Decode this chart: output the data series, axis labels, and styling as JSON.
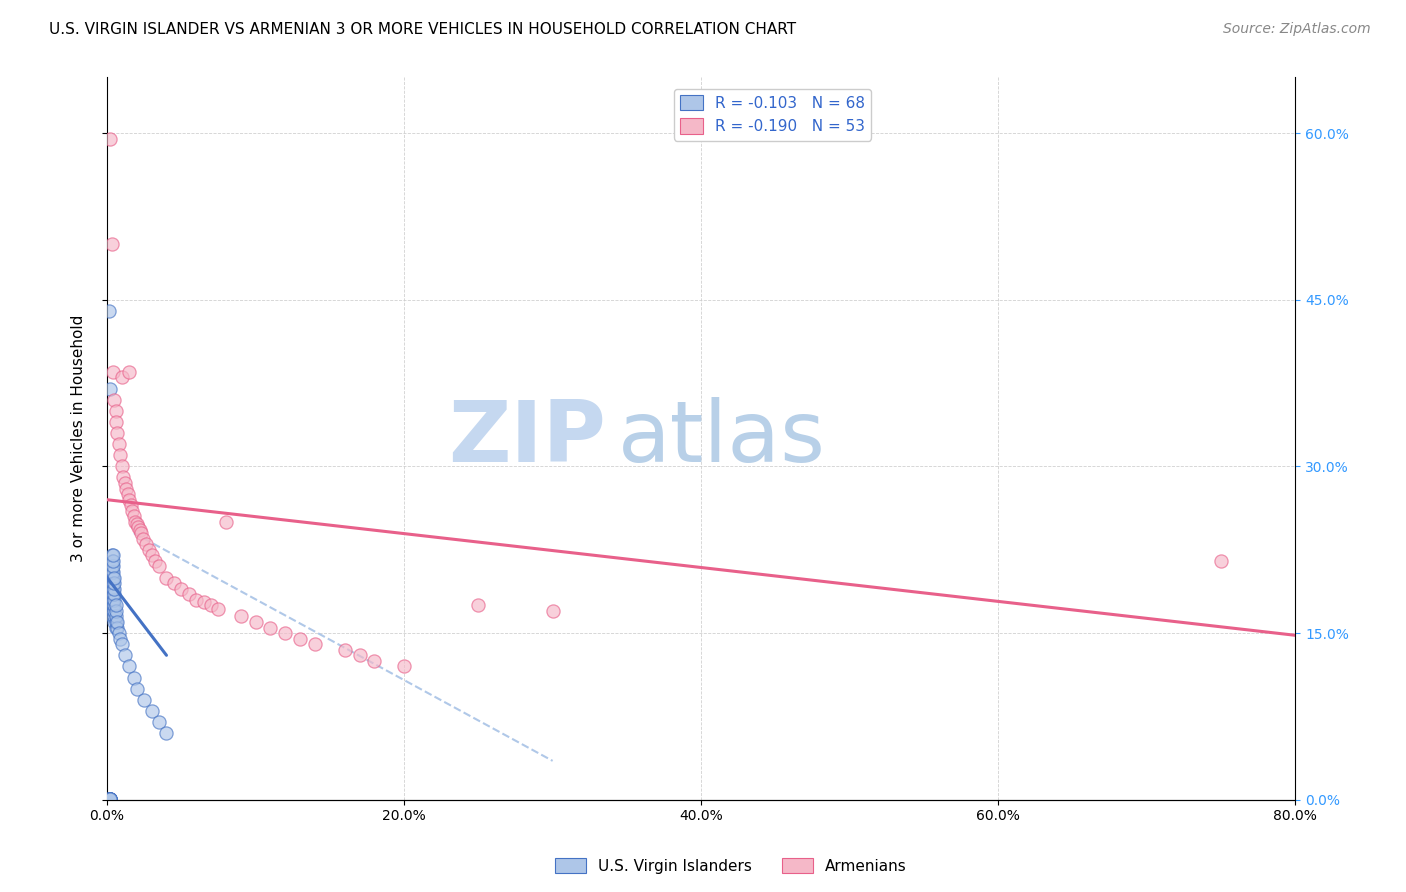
{
  "title": "U.S. VIRGIN ISLANDER VS ARMENIAN 3 OR MORE VEHICLES IN HOUSEHOLD CORRELATION CHART",
  "source": "Source: ZipAtlas.com",
  "ylabel": "3 or more Vehicles in Household",
  "xlabel_ticks": [
    "0.0%",
    "20.0%",
    "40.0%",
    "60.0%",
    "80.0%"
  ],
  "xlabel_vals": [
    0.0,
    0.2,
    0.4,
    0.6,
    0.8
  ],
  "ylabel_ticks_right": [
    "0.0%",
    "15.0%",
    "30.0%",
    "45.0%",
    "60.0%"
  ],
  "ylabel_vals": [
    0.0,
    0.15,
    0.3,
    0.45,
    0.6
  ],
  "xlim": [
    0.0,
    0.8
  ],
  "ylim": [
    0.0,
    0.65
  ],
  "legend_r_blue": "R = -0.103",
  "legend_n_blue": "N = 68",
  "legend_r_pink": "R = -0.190",
  "legend_n_pink": "N = 53",
  "legend_label_blue": "U.S. Virgin Islanders",
  "legend_label_pink": "Armenians",
  "color_blue": "#aec6e8",
  "color_pink": "#f5b8c8",
  "trendline_blue_color": "#4472c4",
  "trendline_pink_color": "#e8608a",
  "trendline_dashed_color": "#b0c8e8",
  "watermark_zip_color": "#c5d8f0",
  "watermark_atlas_color": "#b8d0e8",
  "blue_scatter_x": [
    0.001,
    0.001,
    0.001,
    0.002,
    0.002,
    0.002,
    0.002,
    0.002,
    0.002,
    0.002,
    0.003,
    0.003,
    0.003,
    0.003,
    0.003,
    0.003,
    0.003,
    0.003,
    0.003,
    0.003,
    0.003,
    0.003,
    0.003,
    0.003,
    0.003,
    0.003,
    0.003,
    0.003,
    0.004,
    0.004,
    0.004,
    0.004,
    0.004,
    0.004,
    0.004,
    0.004,
    0.004,
    0.004,
    0.004,
    0.005,
    0.005,
    0.005,
    0.005,
    0.005,
    0.005,
    0.005,
    0.005,
    0.005,
    0.006,
    0.006,
    0.006,
    0.006,
    0.006,
    0.007,
    0.007,
    0.008,
    0.009,
    0.01,
    0.012,
    0.015,
    0.018,
    0.02,
    0.025,
    0.03,
    0.035,
    0.04,
    0.001,
    0.002
  ],
  "blue_scatter_y": [
    0.001,
    0.001,
    0.001,
    0.001,
    0.001,
    0.001,
    0.001,
    0.001,
    0.001,
    0.001,
    0.165,
    0.175,
    0.18,
    0.185,
    0.185,
    0.19,
    0.19,
    0.19,
    0.195,
    0.195,
    0.2,
    0.2,
    0.205,
    0.205,
    0.21,
    0.21,
    0.215,
    0.22,
    0.17,
    0.175,
    0.18,
    0.185,
    0.19,
    0.195,
    0.2,
    0.205,
    0.21,
    0.215,
    0.22,
    0.16,
    0.165,
    0.17,
    0.175,
    0.18,
    0.185,
    0.19,
    0.195,
    0.2,
    0.155,
    0.16,
    0.165,
    0.17,
    0.175,
    0.155,
    0.16,
    0.15,
    0.145,
    0.14,
    0.13,
    0.12,
    0.11,
    0.1,
    0.09,
    0.08,
    0.07,
    0.06,
    0.44,
    0.37
  ],
  "pink_scatter_x": [
    0.002,
    0.003,
    0.004,
    0.005,
    0.006,
    0.006,
    0.007,
    0.008,
    0.009,
    0.01,
    0.01,
    0.011,
    0.012,
    0.013,
    0.014,
    0.015,
    0.015,
    0.016,
    0.017,
    0.018,
    0.019,
    0.02,
    0.021,
    0.022,
    0.023,
    0.024,
    0.026,
    0.028,
    0.03,
    0.032,
    0.035,
    0.04,
    0.045,
    0.05,
    0.055,
    0.06,
    0.065,
    0.07,
    0.075,
    0.08,
    0.09,
    0.1,
    0.11,
    0.12,
    0.13,
    0.14,
    0.16,
    0.17,
    0.18,
    0.2,
    0.25,
    0.3,
    0.75
  ],
  "pink_scatter_y": [
    0.595,
    0.5,
    0.385,
    0.36,
    0.35,
    0.34,
    0.33,
    0.32,
    0.31,
    0.3,
    0.38,
    0.29,
    0.285,
    0.28,
    0.275,
    0.27,
    0.385,
    0.265,
    0.26,
    0.255,
    0.25,
    0.248,
    0.245,
    0.243,
    0.24,
    0.235,
    0.23,
    0.225,
    0.22,
    0.215,
    0.21,
    0.2,
    0.195,
    0.19,
    0.185,
    0.18,
    0.178,
    0.175,
    0.172,
    0.25,
    0.165,
    0.16,
    0.155,
    0.15,
    0.145,
    0.14,
    0.135,
    0.13,
    0.125,
    0.12,
    0.175,
    0.17,
    0.215
  ],
  "blue_trendline_x": [
    0.0,
    0.04
  ],
  "blue_trendline_y": [
    0.2,
    0.13
  ],
  "pink_trendline_x": [
    0.0,
    0.8
  ],
  "pink_trendline_y": [
    0.27,
    0.148
  ],
  "dashed_trendline_x": [
    0.018,
    0.3
  ],
  "dashed_trendline_y": [
    0.24,
    0.035
  ],
  "title_fontsize": 11,
  "axis_tick_fontsize": 10,
  "legend_fontsize": 11,
  "ylabel_fontsize": 11,
  "source_fontsize": 10
}
